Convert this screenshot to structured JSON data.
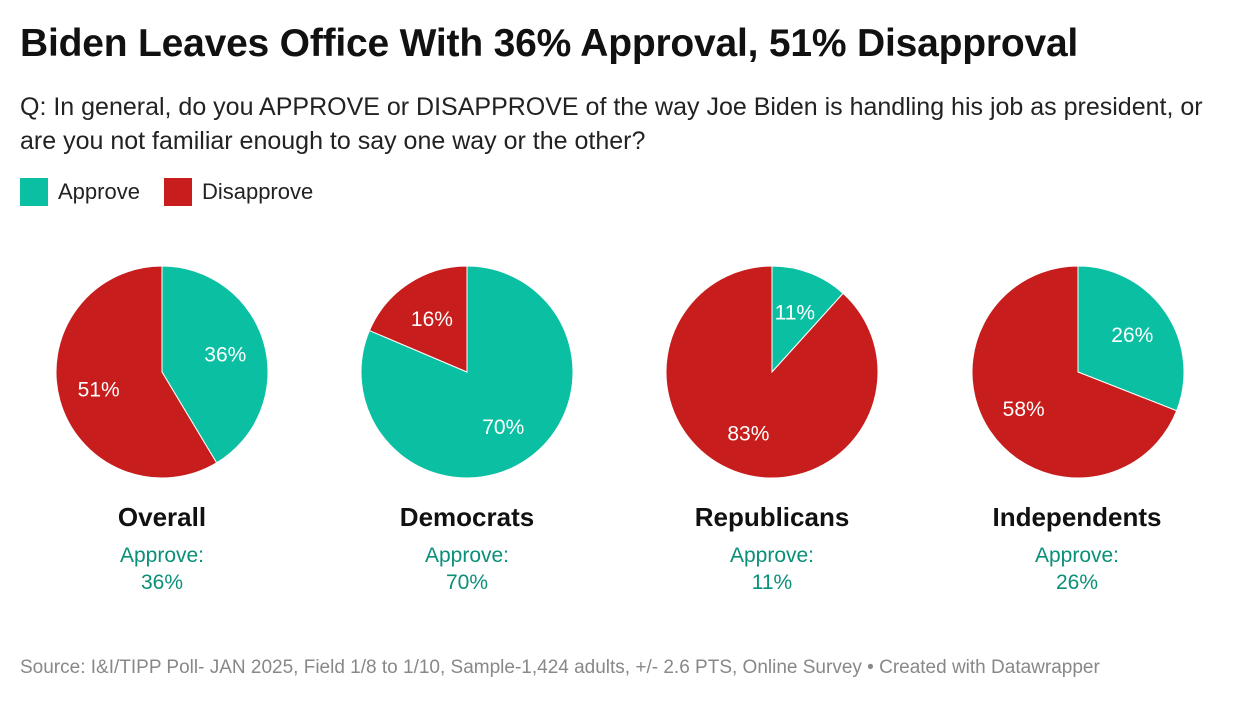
{
  "title": "Biden Leaves Office With 36% Approval, 51% Disapproval",
  "subtitle": "Q: In general, do you APPROVE or DISAPPROVE of the way Joe Biden is handling his job as president, or are you not familiar enough to say one way or the other?",
  "legend": [
    {
      "label": "Approve",
      "color": "#0bbfa2"
    },
    {
      "label": "Disapprove",
      "color": "#c71e1d"
    }
  ],
  "colors": {
    "approve": "#0bbfa2",
    "disapprove": "#c71e1d",
    "approve_text": "#0a8f78"
  },
  "chart_data": {
    "type": "pie",
    "title": "Biden Leaves Office With 36% Approval, 51% Disapproval",
    "series": [
      {
        "name": "Overall",
        "approve": 36,
        "disapprove": 51,
        "approve_label": "36%",
        "disapprove_label": "51%",
        "caption_prefix": "Approve:",
        "caption_value": "36%"
      },
      {
        "name": "Democrats",
        "approve": 70,
        "disapprove": 16,
        "approve_label": "70%",
        "disapprove_label": "16%",
        "caption_prefix": "Approve:",
        "caption_value": "70%"
      },
      {
        "name": "Republicans",
        "approve": 11,
        "disapprove": 83,
        "approve_label": "11%",
        "disapprove_label": "83%",
        "caption_prefix": "Approve:",
        "caption_value": "11%"
      },
      {
        "name": "Independents",
        "approve": 26,
        "disapprove": 58,
        "approve_label": "26%",
        "disapprove_label": "58%",
        "caption_prefix": "Approve:",
        "caption_value": "26%"
      }
    ]
  },
  "source": "Source: I&I/TIPP Poll- JAN 2025, Field 1/8 to 1/10, Sample-1,424 adults, +/- 2.6 PTS, Online Survey • Created with Datawrapper"
}
